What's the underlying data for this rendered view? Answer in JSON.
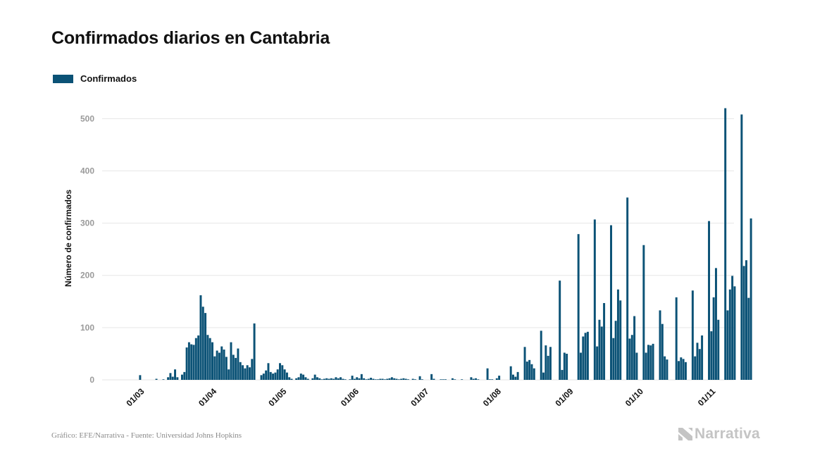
{
  "title": "Confirmados diarios en Cantabria",
  "footer": "Gráfico: EFE/Narrativa - Fuente: Universidad Johns Hopkins",
  "logo_text": "Narrativa",
  "colors": {
    "bar": "#0b5276",
    "grid": "#e6e6e6",
    "tick": "#9a9a9a",
    "logo": "#c4c4c4"
  },
  "chart_data": {
    "type": "bar",
    "title": "Confirmados diarios en Cantabria",
    "ylabel": "Número de confirmados",
    "xlabel": "",
    "ylim": [
      0,
      545
    ],
    "yticks": [
      0,
      100,
      200,
      300,
      400,
      500
    ],
    "grid": true,
    "legend_position": "top-left",
    "start_date": "2020-02-22",
    "x_tick_labels": [
      {
        "label": "01/03",
        "date": "2020-03-01"
      },
      {
        "label": "01/04",
        "date": "2020-04-01"
      },
      {
        "label": "01/05",
        "date": "2020-05-01"
      },
      {
        "label": "01/06",
        "date": "2020-06-01"
      },
      {
        "label": "01/07",
        "date": "2020-07-01"
      },
      {
        "label": "01/08",
        "date": "2020-08-01"
      },
      {
        "label": "01/09",
        "date": "2020-09-01"
      },
      {
        "label": "01/10",
        "date": "2020-10-01"
      },
      {
        "label": "01/11",
        "date": "2020-11-01"
      }
    ],
    "series": [
      {
        "name": "Confirmados",
        "values": [
          0,
          0,
          0,
          0,
          0,
          0,
          0,
          0,
          0,
          0,
          0,
          9,
          0,
          0,
          0,
          0,
          0,
          0,
          2,
          0,
          0,
          1,
          0,
          5,
          13,
          6,
          20,
          5,
          0,
          10,
          15,
          62,
          72,
          68,
          67,
          80,
          85,
          162,
          140,
          128,
          86,
          80,
          72,
          45,
          56,
          52,
          64,
          58,
          44,
          20,
          72,
          48,
          42,
          60,
          34,
          28,
          22,
          28,
          24,
          40,
          108,
          0,
          0,
          9,
          12,
          18,
          32,
          15,
          12,
          14,
          20,
          32,
          28,
          20,
          14,
          5,
          2,
          0,
          3,
          5,
          12,
          10,
          5,
          2,
          0,
          3,
          10,
          5,
          3,
          1,
          2,
          3,
          2,
          3,
          2,
          5,
          3,
          5,
          2,
          1,
          0,
          1,
          8,
          2,
          5,
          3,
          11,
          3,
          1,
          2,
          4,
          2,
          1,
          1,
          2,
          2,
          1,
          2,
          3,
          5,
          3,
          2,
          1,
          2,
          3,
          2,
          1,
          0,
          2,
          1,
          0,
          7,
          1,
          0,
          0,
          0,
          11,
          2,
          0,
          0,
          1,
          1,
          1,
          0,
          0,
          3,
          1,
          0,
          0,
          1,
          0,
          0,
          0,
          5,
          2,
          3,
          1,
          0,
          0,
          0,
          22,
          1,
          1,
          0,
          3,
          8,
          0,
          0,
          0,
          0,
          26,
          10,
          6,
          15,
          0,
          0,
          63,
          35,
          38,
          30,
          22,
          0,
          0,
          94,
          14,
          66,
          46,
          63,
          0,
          0,
          0,
          190,
          19,
          52,
          50,
          0,
          0,
          0,
          0,
          279,
          52,
          83,
          90,
          92,
          0,
          0,
          307,
          64,
          115,
          102,
          147,
          0,
          0,
          296,
          80,
          113,
          173,
          152,
          0,
          0,
          349,
          79,
          86,
          122,
          52,
          0,
          0,
          258,
          52,
          67,
          66,
          69,
          0,
          0,
          133,
          107,
          45,
          39,
          0,
          0,
          0,
          158,
          36,
          43,
          40,
          34,
          0,
          0,
          171,
          45,
          71,
          59,
          85,
          0,
          0,
          304,
          93,
          158,
          214,
          115,
          0,
          0,
          520,
          133,
          173,
          199,
          179,
          0,
          0,
          508,
          218,
          229,
          157,
          309
        ]
      }
    ]
  }
}
